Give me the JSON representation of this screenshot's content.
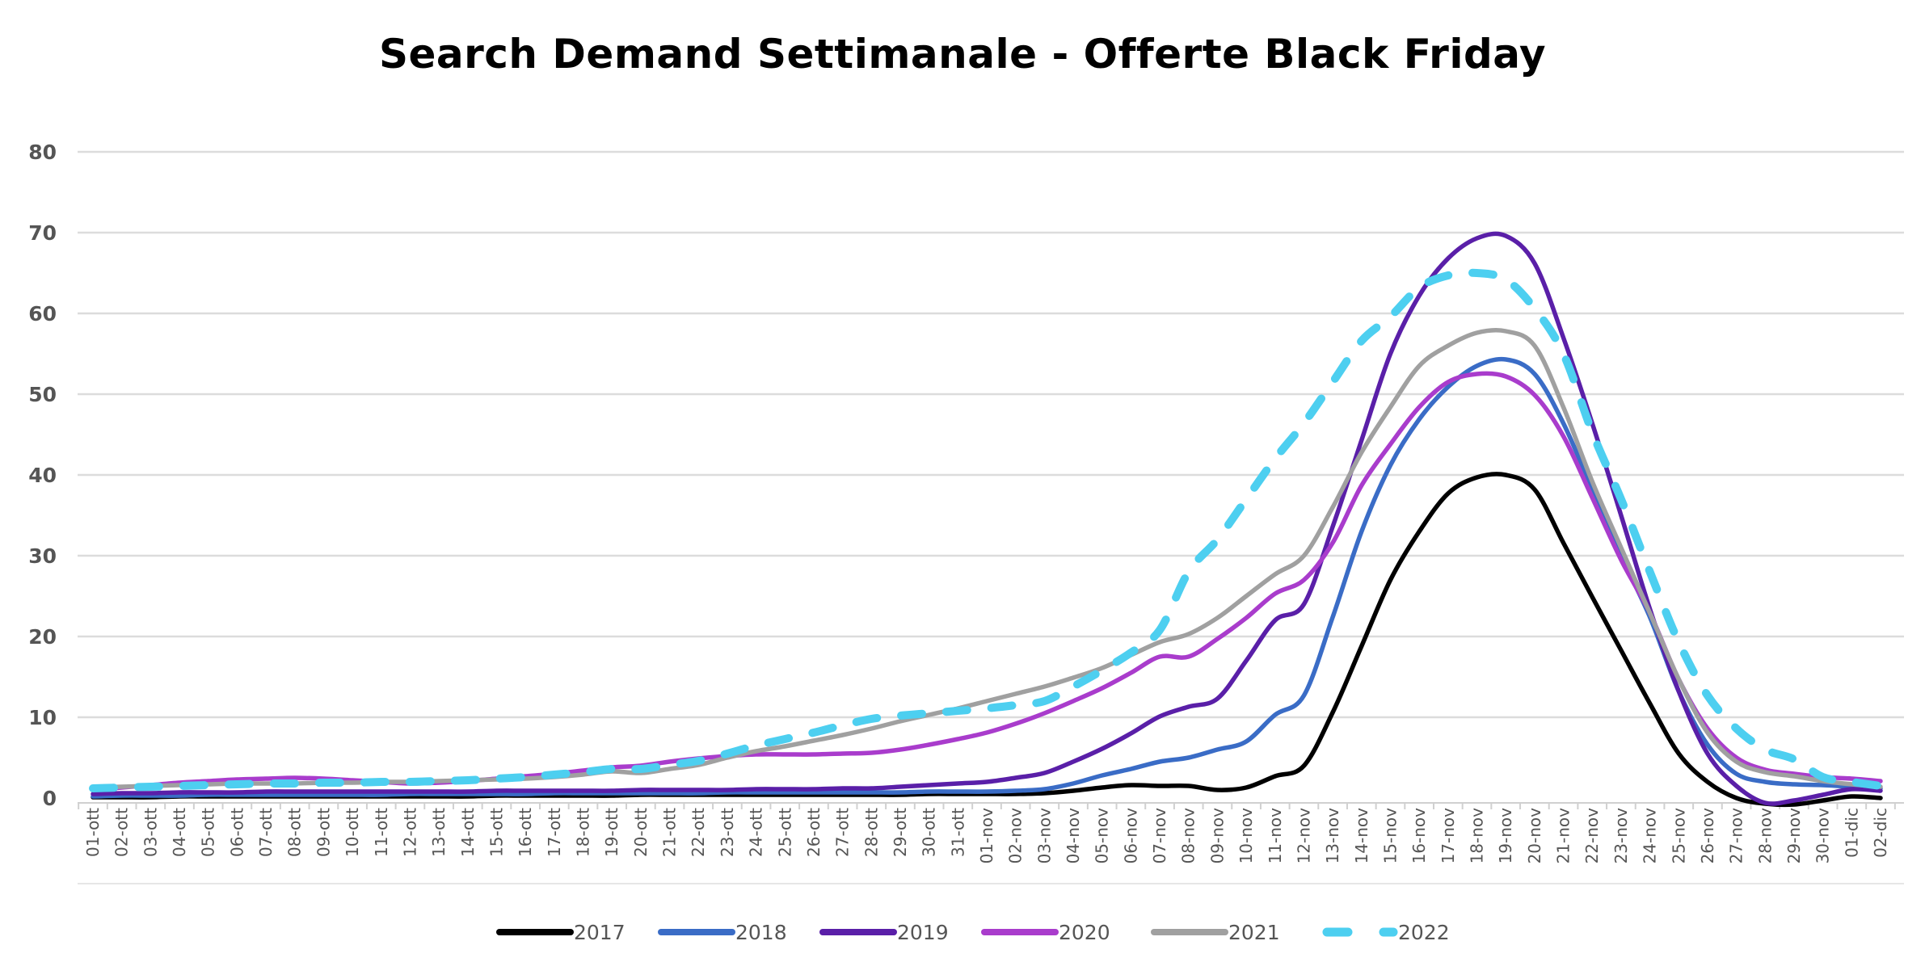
{
  "chart_data": {
    "type": "line",
    "title": "Search Demand Settimanale - Offerte Black Friday",
    "xlabel": "",
    "ylabel": "",
    "ylim": [
      0,
      80
    ],
    "yticks": [
      "0",
      "10",
      "20",
      "30",
      "40",
      "50",
      "60",
      "70",
      "80"
    ],
    "grid": true,
    "legend_position": "bottom",
    "categories": [
      "01-ott",
      "02-ott",
      "03-ott",
      "04-ott",
      "05-ott",
      "06-ott",
      "07-ott",
      "08-ott",
      "09-ott",
      "10-ott",
      "11-ott",
      "12-ott",
      "13-ott",
      "14-ott",
      "15-ott",
      "16-ott",
      "17-ott",
      "18-ott",
      "19-ott",
      "20-ott",
      "21-ott",
      "22-ott",
      "23-ott",
      "24-ott",
      "25-ott",
      "26-ott",
      "27-ott",
      "28-ott",
      "29-ott",
      "30-ott",
      "31-ott",
      "01-nov",
      "02-nov",
      "03-nov",
      "04-nov",
      "05-nov",
      "06-nov",
      "07-nov",
      "08-nov",
      "09-nov",
      "10-nov",
      "11-nov",
      "12-nov",
      "13-nov",
      "14-nov",
      "15-nov",
      "16-nov",
      "17-nov",
      "18-nov",
      "19-nov",
      "20-nov",
      "21-nov",
      "22-nov",
      "23-nov",
      "24-nov",
      "25-nov",
      "26-nov",
      "27-nov",
      "28-nov",
      "29-nov",
      "30-nov",
      "01-dic",
      "02-dic"
    ],
    "series": [
      {
        "name": "2017",
        "color": "#000000",
        "dashed": false,
        "values": [
          0.1,
          0.1,
          0.1,
          0.2,
          0.2,
          0.2,
          0.2,
          0.2,
          0.2,
          0.2,
          0.2,
          0.2,
          0.2,
          0.2,
          0.3,
          0.3,
          0.3,
          0.3,
          0.3,
          0.4,
          0.4,
          0.4,
          0.4,
          0.4,
          0.4,
          0.4,
          0.4,
          0.4,
          0.4,
          0.5,
          0.5,
          0.5,
          0.5,
          0.6,
          0.9,
          1.3,
          1.6,
          1.5,
          1.5,
          1.0,
          1.3,
          2.7,
          4.0,
          10.6,
          18.8,
          27.0,
          33.0,
          37.7,
          39.7,
          40.0,
          38.2,
          31.6,
          24.9,
          18.3,
          11.7,
          5.5,
          2.0,
          0.0,
          -0.7,
          -0.8,
          -0.3,
          0.2,
          0.0
        ]
      },
      {
        "name": "2018",
        "color": "#3a6cc6",
        "dashed": false,
        "values": [
          0.2,
          0.3,
          0.3,
          0.3,
          0.4,
          0.4,
          0.4,
          0.4,
          0.4,
          0.4,
          0.4,
          0.5,
          0.5,
          0.5,
          0.5,
          0.5,
          0.6,
          0.6,
          0.6,
          0.6,
          0.6,
          0.6,
          0.7,
          0.7,
          0.7,
          0.7,
          0.7,
          0.7,
          0.7,
          0.8,
          0.8,
          0.8,
          0.9,
          1.1,
          1.8,
          2.8,
          3.6,
          4.5,
          5.0,
          6.0,
          7.0,
          10.3,
          12.7,
          22.4,
          33.0,
          41.2,
          46.9,
          50.9,
          53.5,
          54.3,
          52.5,
          46.4,
          38.2,
          30.0,
          22.4,
          13.2,
          6.6,
          3.0,
          2.0,
          1.7,
          1.6,
          1.4,
          1.2
        ]
      },
      {
        "name": "2019",
        "color": "#5a1fa8",
        "dashed": false,
        "values": [
          0.5,
          0.6,
          0.6,
          0.7,
          0.7,
          0.7,
          0.8,
          0.8,
          0.8,
          0.8,
          0.8,
          0.8,
          0.8,
          0.8,
          0.9,
          0.9,
          0.9,
          0.9,
          0.9,
          1.0,
          1.0,
          1.0,
          1.0,
          1.1,
          1.1,
          1.1,
          1.2,
          1.2,
          1.4,
          1.6,
          1.8,
          2.0,
          2.5,
          3.1,
          4.5,
          6.1,
          8.0,
          10.1,
          11.3,
          12.3,
          17.0,
          22.0,
          24.0,
          33.6,
          44.3,
          55.0,
          62.2,
          66.8,
          69.3,
          69.6,
          66.2,
          57.0,
          46.4,
          35.0,
          23.4,
          13.2,
          5.5,
          1.5,
          -0.6,
          -0.3,
          0.4,
          1.1,
          0.9
        ]
      },
      {
        "name": "2020",
        "color": "#a93ccc",
        "dashed": false,
        "values": [
          1.0,
          1.3,
          1.6,
          1.9,
          2.1,
          2.3,
          2.4,
          2.5,
          2.4,
          2.2,
          2.0,
          1.8,
          1.9,
          2.1,
          2.4,
          2.7,
          3.0,
          3.4,
          3.8,
          4.0,
          4.5,
          4.9,
          5.2,
          5.4,
          5.4,
          5.4,
          5.5,
          5.6,
          6.0,
          6.6,
          7.3,
          8.1,
          9.2,
          10.5,
          12.0,
          13.6,
          15.5,
          17.5,
          17.5,
          19.7,
          22.3,
          25.3,
          27.0,
          31.6,
          38.7,
          43.8,
          48.4,
          51.5,
          52.5,
          52.2,
          49.9,
          44.8,
          37.2,
          29.5,
          22.9,
          14.7,
          8.6,
          5.0,
          3.5,
          3.0,
          2.6,
          2.4,
          2.1
        ]
      },
      {
        "name": "2021",
        "color": "#a0a0a0",
        "dashed": false,
        "values": [
          1.3,
          1.4,
          1.5,
          1.6,
          1.7,
          1.8,
          1.8,
          1.8,
          1.9,
          1.9,
          2.0,
          2.0,
          2.1,
          2.2,
          2.3,
          2.4,
          2.6,
          2.9,
          3.3,
          3.1,
          3.6,
          4.1,
          5.0,
          5.8,
          6.4,
          7.1,
          7.8,
          8.6,
          9.5,
          10.3,
          11.1,
          12.0,
          12.9,
          13.8,
          14.9,
          16.1,
          17.7,
          19.3,
          20.3,
          22.3,
          25.0,
          27.7,
          30.0,
          36.0,
          42.8,
          48.4,
          53.5,
          56.0,
          57.6,
          57.8,
          56.0,
          48.4,
          39.2,
          31.0,
          22.9,
          14.7,
          8.1,
          4.5,
          3.2,
          2.7,
          2.1,
          1.7,
          1.4
        ]
      },
      {
        "name": "2022",
        "color": "#4dcff0",
        "dashed": true,
        "values": [
          1.2,
          1.3,
          1.4,
          1.5,
          1.6,
          1.7,
          1.8,
          1.8,
          1.9,
          1.9,
          2.0,
          2.0,
          2.1,
          2.2,
          2.4,
          2.6,
          2.9,
          3.2,
          3.6,
          3.6,
          4.1,
          4.6,
          5.5,
          6.5,
          7.3,
          8.1,
          9.0,
          9.8,
          10.2,
          10.5,
          10.8,
          11.1,
          11.5,
          12.0,
          13.8,
          15.8,
          18.0,
          20.8,
          28.0,
          32.0,
          37.0,
          42.0,
          46.4,
          51.5,
          56.6,
          59.6,
          63.2,
          64.7,
          65.0,
          64.2,
          60.6,
          55.0,
          45.3,
          37.0,
          28.0,
          19.3,
          12.7,
          8.6,
          6.0,
          4.8,
          2.6,
          2.0,
          1.5
        ]
      }
    ]
  }
}
